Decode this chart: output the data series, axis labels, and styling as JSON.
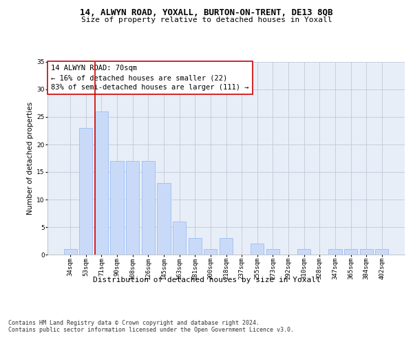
{
  "title": "14, ALWYN ROAD, YOXALL, BURTON-ON-TRENT, DE13 8QB",
  "subtitle": "Size of property relative to detached houses in Yoxall",
  "xlabel": "Distribution of detached houses by size in Yoxall",
  "ylabel": "Number of detached properties",
  "categories": [
    "34sqm",
    "53sqm",
    "71sqm",
    "90sqm",
    "108sqm",
    "126sqm",
    "145sqm",
    "163sqm",
    "181sqm",
    "200sqm",
    "218sqm",
    "237sqm",
    "255sqm",
    "273sqm",
    "292sqm",
    "310sqm",
    "328sqm",
    "347sqm",
    "365sqm",
    "384sqm",
    "402sqm"
  ],
  "values": [
    1,
    23,
    26,
    17,
    17,
    17,
    13,
    6,
    3,
    1,
    3,
    0,
    2,
    1,
    0,
    1,
    0,
    1,
    1,
    1,
    1
  ],
  "bar_color": "#c9daf8",
  "bar_edge_color": "#a4c2f4",
  "property_line_index": 2,
  "property_line_color": "#cc0000",
  "annotation_text": "14 ALWYN ROAD: 70sqm\n← 16% of detached houses are smaller (22)\n83% of semi-detached houses are larger (111) →",
  "annotation_box_color": "#ffffff",
  "annotation_box_edge_color": "#cc0000",
  "ylim": [
    0,
    35
  ],
  "yticks": [
    0,
    5,
    10,
    15,
    20,
    25,
    30,
    35
  ],
  "footer_text": "Contains HM Land Registry data © Crown copyright and database right 2024.\nContains public sector information licensed under the Open Government Licence v3.0.",
  "bg_color": "#ffffff",
  "plot_bg_color": "#e8eef8",
  "grid_color": "#c0c8d8",
  "title_fontsize": 9,
  "subtitle_fontsize": 8,
  "xlabel_fontsize": 8,
  "ylabel_fontsize": 7.5,
  "tick_fontsize": 6.5,
  "annotation_fontsize": 7.5,
  "footer_fontsize": 6
}
